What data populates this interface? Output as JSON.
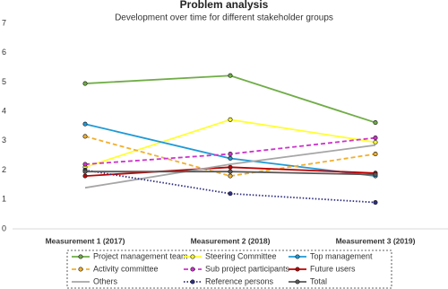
{
  "chart_data": {
    "type": "line",
    "title": "Problem analysis",
    "subtitle": "Development over time for different stakeholder groups",
    "categories": [
      "Measurement 1 (2017)",
      "Measurement 2 (2018)",
      "Measurement 3 (2019)"
    ],
    "ylim": [
      0,
      7
    ],
    "yticks": [
      0,
      1,
      2,
      3,
      4,
      5,
      6,
      7
    ],
    "grid": false,
    "series": [
      {
        "name": "Project management team",
        "color": "#70ad47",
        "dash": "solid",
        "markers": true,
        "values": [
          4.95,
          5.22,
          3.62
        ]
      },
      {
        "name": "Steering Committee",
        "color": "#ffff33",
        "dash": "solid",
        "markers": true,
        "values": [
          2.1,
          3.72,
          2.95
        ]
      },
      {
        "name": "Top management",
        "color": "#1f9ad6",
        "dash": "solid",
        "markers": true,
        "values": [
          3.57,
          2.4,
          1.8
        ]
      },
      {
        "name": "Activity committee",
        "color": "#f0b030",
        "dash": "dashed",
        "markers": true,
        "values": [
          3.15,
          1.8,
          2.55
        ]
      },
      {
        "name": "Sub project participants",
        "color": "#cc33cc",
        "dash": "dashed",
        "markers": true,
        "values": [
          2.2,
          2.55,
          3.1
        ]
      },
      {
        "name": "Future users",
        "color": "#c00000",
        "dash": "solid",
        "markers": true,
        "values": [
          1.8,
          2.1,
          1.9
        ]
      },
      {
        "name": "Others",
        "color": "#a6a6a6",
        "dash": "solid",
        "markers": false,
        "values": [
          1.4,
          2.2,
          2.85
        ]
      },
      {
        "name": "Reference persons",
        "color": "#2e2e80",
        "dash": "dotted",
        "markers": true,
        "values": [
          2.0,
          1.2,
          0.9
        ]
      },
      {
        "name": "Total",
        "color": "#595959",
        "dash": "solid",
        "markers": true,
        "values": [
          1.95,
          1.95,
          1.85
        ]
      }
    ]
  }
}
